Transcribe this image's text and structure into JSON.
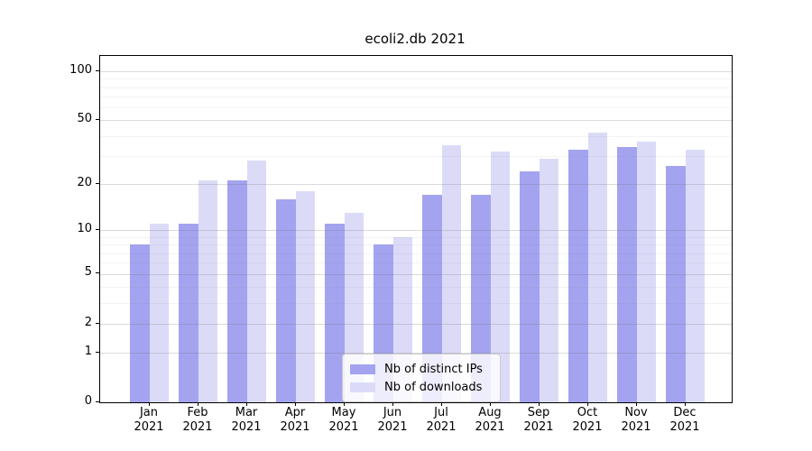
{
  "title": "ecoli2.db 2021",
  "chart_data": {
    "type": "bar",
    "title": "ecoli2.db 2021",
    "categories": [
      "Jan 2021",
      "Feb 2021",
      "Mar 2021",
      "Apr 2021",
      "May 2021",
      "Jun 2021",
      "Jul 2021",
      "Aug 2021",
      "Sep 2021",
      "Oct 2021",
      "Nov 2021",
      "Dec 2021"
    ],
    "series": [
      {
        "name": "Nb of distinct IPs",
        "color": "#a3a3f0",
        "values": [
          8,
          11,
          21,
          16,
          11,
          8,
          17,
          17,
          24,
          33,
          34,
          26
        ]
      },
      {
        "name": "Nb of downloads",
        "color": "#dbdbf8",
        "values": [
          11,
          21,
          28,
          18,
          13,
          9,
          35,
          32,
          29,
          42,
          37,
          33
        ]
      }
    ],
    "yscale": "log1p",
    "yticks": [
      0,
      1,
      2,
      5,
      10,
      20,
      50,
      100
    ],
    "ylim": [
      0,
      124
    ],
    "xlabel": "",
    "ylabel": "",
    "grid": true,
    "legend_position": "lower center"
  }
}
